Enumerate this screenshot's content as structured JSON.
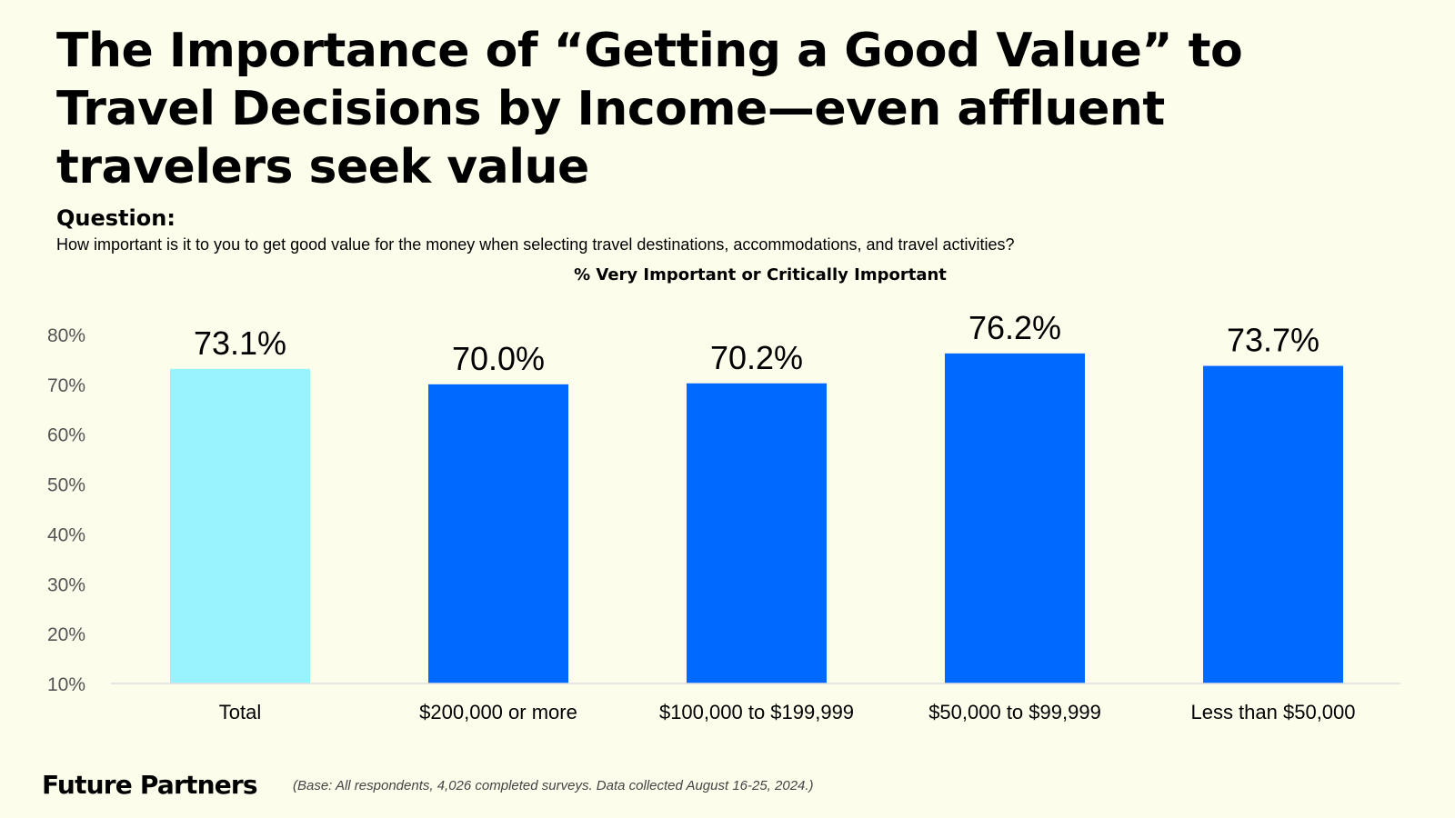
{
  "title": "The Importance of “Getting a Good Value” to Travel Decisions by Income—even affluent travelers seek value",
  "question": {
    "label": "Question:",
    "text": "How important is it to you to get good value for the money when selecting travel destinations, accommodations, and travel activities?"
  },
  "chart_data": {
    "type": "bar",
    "title": "% Very Important or Critically Important",
    "categories": [
      "Total",
      "$200,000 or more",
      "$100,000 to $199,999",
      "$50,000 to $99,999",
      "Less than $50,000"
    ],
    "values": [
      73.1,
      70.0,
      70.2,
      76.2,
      73.7
    ],
    "value_labels": [
      "73.1%",
      "70.0%",
      "70.2%",
      "76.2%",
      "73.7%"
    ],
    "yticks": [
      10,
      20,
      30,
      40,
      50,
      60,
      70,
      80
    ],
    "ytick_labels": [
      "10%",
      "20%",
      "30%",
      "40%",
      "50%",
      "60%",
      "70%",
      "80%"
    ],
    "ylim": [
      10,
      80
    ],
    "xlabel": "",
    "ylabel": "",
    "colors": [
      "#99f3ff",
      "#0069ff",
      "#0069ff",
      "#0069ff",
      "#0069ff"
    ],
    "axis_color": "#dddddd"
  },
  "footer": {
    "brand": "Future Partners",
    "note": "(Base: All respondents, 4,026 completed surveys. Data collected August 16-25, 2024.)"
  }
}
